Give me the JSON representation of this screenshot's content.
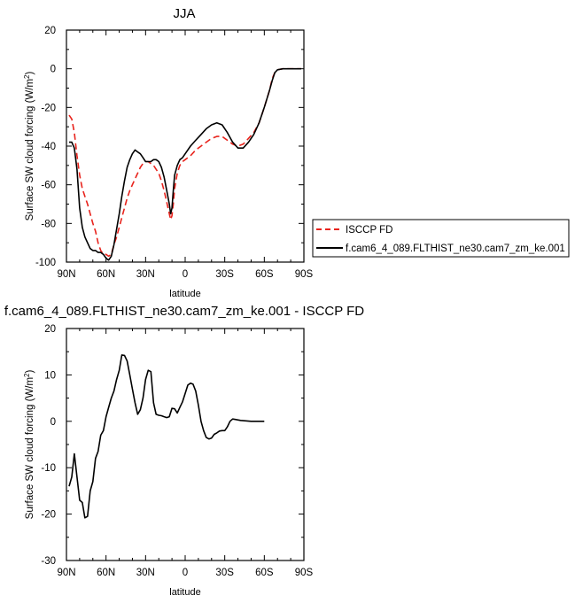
{
  "chart_data": [
    {
      "type": "line",
      "title": "JJA",
      "xlabel": "latitude",
      "ylabel": "Surface SW cloud forcing (W/m²)",
      "xlim": [
        90,
        -90
      ],
      "ylim": [
        -100,
        20
      ],
      "xticks": [
        90,
        60,
        30,
        0,
        -30,
        -60,
        -90
      ],
      "xtick_labels": [
        "90N",
        "60N",
        "30N",
        "0",
        "30S",
        "60S",
        "90S"
      ],
      "yticks": [
        -100,
        -80,
        -60,
        -40,
        -20,
        0,
        20
      ],
      "ytick_labels": [
        "-100",
        "-80",
        "-60",
        "-40",
        "-20",
        "0",
        "20"
      ],
      "legend_position": "right",
      "series": [
        {
          "name": "ISCCP FD",
          "color": "#e8231c",
          "dash": "dashed",
          "points": [
            [
              88,
              -24
            ],
            [
              86,
              -26
            ],
            [
              84,
              -33
            ],
            [
              82,
              -45
            ],
            [
              80,
              -55
            ],
            [
              78,
              -62
            ],
            [
              76,
              -66
            ],
            [
              74,
              -70
            ],
            [
              72,
              -75
            ],
            [
              70,
              -80
            ],
            [
              68,
              -84
            ],
            [
              66,
              -90
            ],
            [
              64,
              -94
            ],
            [
              62,
              -96
            ],
            [
              60,
              -96
            ],
            [
              58,
              -97
            ],
            [
              56,
              -96
            ],
            [
              54,
              -91
            ],
            [
              52,
              -87
            ],
            [
              50,
              -82
            ],
            [
              48,
              -77
            ],
            [
              46,
              -72
            ],
            [
              44,
              -67
            ],
            [
              42,
              -63
            ],
            [
              40,
              -60
            ],
            [
              38,
              -57
            ],
            [
              36,
              -54
            ],
            [
              34,
              -51
            ],
            [
              32,
              -49
            ],
            [
              30,
              -48
            ],
            [
              28,
              -48
            ],
            [
              26,
              -49
            ],
            [
              24,
              -50
            ],
            [
              22,
              -52
            ],
            [
              20,
              -54
            ],
            [
              18,
              -58
            ],
            [
              16,
              -63
            ],
            [
              14,
              -69
            ],
            [
              12,
              -75
            ],
            [
              11,
              -78
            ],
            [
              10,
              -76
            ],
            [
              9,
              -70
            ],
            [
              8,
              -62
            ],
            [
              6,
              -54
            ],
            [
              4,
              -50
            ],
            [
              2,
              -48
            ],
            [
              0,
              -47
            ],
            [
              -4,
              -45
            ],
            [
              -8,
              -42
            ],
            [
              -12,
              -40
            ],
            [
              -16,
              -38
            ],
            [
              -20,
              -36
            ],
            [
              -24,
              -35
            ],
            [
              -28,
              -35
            ],
            [
              -32,
              -37
            ],
            [
              -36,
              -39
            ],
            [
              -40,
              -40
            ],
            [
              -44,
              -39
            ],
            [
              -48,
              -36
            ],
            [
              -52,
              -33
            ],
            [
              -56,
              -28
            ],
            [
              -60,
              -20
            ],
            [
              -64,
              -11
            ],
            [
              -66,
              -5
            ],
            [
              -68,
              -2
            ],
            [
              -70,
              -0.5
            ],
            [
              -74,
              0
            ],
            [
              -80,
              0
            ],
            [
              -88,
              0
            ]
          ]
        },
        {
          "name": "f.cam6_4_089.FLTHIST_ne30.cam7_zm_ke.001",
          "color": "#000000",
          "dash": "solid",
          "points": [
            [
              88,
              -38
            ],
            [
              86,
              -38
            ],
            [
              84,
              -41
            ],
            [
              82,
              -52
            ],
            [
              80,
              -72
            ],
            [
              78,
              -82
            ],
            [
              76,
              -87
            ],
            [
              74,
              -90
            ],
            [
              72,
              -93
            ],
            [
              70,
              -94
            ],
            [
              68,
              -94
            ],
            [
              66,
              -95
            ],
            [
              64,
              -95
            ],
            [
              62,
              -96
            ],
            [
              60,
              -98
            ],
            [
              58,
              -99
            ],
            [
              56,
              -97
            ],
            [
              54,
              -91
            ],
            [
              52,
              -83
            ],
            [
              50,
              -75
            ],
            [
              48,
              -66
            ],
            [
              46,
              -58
            ],
            [
              44,
              -51
            ],
            [
              42,
              -47
            ],
            [
              40,
              -44
            ],
            [
              38,
              -42
            ],
            [
              36,
              -43
            ],
            [
              34,
              -44
            ],
            [
              32,
              -46
            ],
            [
              30,
              -48
            ],
            [
              28,
              -48
            ],
            [
              26,
              -48
            ],
            [
              24,
              -47
            ],
            [
              22,
              -47
            ],
            [
              20,
              -48
            ],
            [
              18,
              -51
            ],
            [
              16,
              -56
            ],
            [
              14,
              -63
            ],
            [
              12,
              -70
            ],
            [
              11,
              -75
            ],
            [
              10,
              -72
            ],
            [
              9,
              -63
            ],
            [
              8,
              -55
            ],
            [
              6,
              -50
            ],
            [
              4,
              -47
            ],
            [
              2,
              -46
            ],
            [
              0,
              -44
            ],
            [
              -4,
              -40
            ],
            [
              -8,
              -37
            ],
            [
              -12,
              -34
            ],
            [
              -16,
              -31
            ],
            [
              -20,
              -29
            ],
            [
              -24,
              -28
            ],
            [
              -28,
              -29
            ],
            [
              -32,
              -33
            ],
            [
              -36,
              -38
            ],
            [
              -40,
              -41
            ],
            [
              -44,
              -41
            ],
            [
              -48,
              -38
            ],
            [
              -52,
              -34
            ],
            [
              -56,
              -28
            ],
            [
              -60,
              -20
            ],
            [
              -64,
              -11
            ],
            [
              -66,
              -6
            ],
            [
              -68,
              -2
            ],
            [
              -70,
              -0.5
            ],
            [
              -74,
              0
            ],
            [
              -80,
              0
            ],
            [
              -88,
              0
            ]
          ]
        }
      ]
    },
    {
      "type": "line",
      "title": "f.cam6_4_089.FLTHIST_ne30.cam7_zm_ke.001 - ISCCP FD",
      "xlabel": "latitude",
      "ylabel": "Surface SW cloud forcing (W/m²)",
      "xlim": [
        90,
        -90
      ],
      "ylim": [
        -30,
        20
      ],
      "xticks": [
        90,
        60,
        30,
        0,
        -30,
        -60,
        -90
      ],
      "xtick_labels": [
        "90N",
        "60N",
        "30N",
        "0",
        "30S",
        "60S",
        "90S"
      ],
      "yticks": [
        -30,
        -20,
        -10,
        0,
        10,
        20
      ],
      "ytick_labels": [
        "-30",
        "-20",
        "-10",
        "0",
        "10",
        "20"
      ],
      "series": [
        {
          "color": "#000000",
          "dash": "solid",
          "points": [
            [
              88,
              -14
            ],
            [
              86,
              -12
            ],
            [
              84,
              -7
            ],
            [
              82,
              -12
            ],
            [
              80,
              -17
            ],
            [
              78,
              -17.5
            ],
            [
              76,
              -20.8
            ],
            [
              74,
              -20.5
            ],
            [
              72,
              -15
            ],
            [
              70,
              -13
            ],
            [
              68,
              -8
            ],
            [
              66,
              -6.5
            ],
            [
              64,
              -3
            ],
            [
              62,
              -2
            ],
            [
              60,
              1
            ],
            [
              58,
              3
            ],
            [
              56,
              5
            ],
            [
              54,
              6.5
            ],
            [
              52,
              9
            ],
            [
              50,
              11
            ],
            [
              48,
              14.3
            ],
            [
              46,
              14.2
            ],
            [
              44,
              13
            ],
            [
              42,
              10
            ],
            [
              40,
              7
            ],
            [
              38,
              4
            ],
            [
              36,
              1.5
            ],
            [
              34,
              2.5
            ],
            [
              32,
              5
            ],
            [
              30,
              9
            ],
            [
              28,
              11
            ],
            [
              26,
              10.7
            ],
            [
              24,
              4
            ],
            [
              22,
              1.5
            ],
            [
              20,
              1.3
            ],
            [
              18,
              1.2
            ],
            [
              16,
              1
            ],
            [
              14,
              0.8
            ],
            [
              12,
              1
            ],
            [
              10,
              2.8
            ],
            [
              8,
              2.7
            ],
            [
              6,
              1.8
            ],
            [
              4,
              3
            ],
            [
              2,
              4.2
            ],
            [
              0,
              6
            ],
            [
              -2,
              7.8
            ],
            [
              -4,
              8.2
            ],
            [
              -6,
              8
            ],
            [
              -8,
              6.5
            ],
            [
              -10,
              3.5
            ],
            [
              -12,
              0
            ],
            [
              -14,
              -2
            ],
            [
              -16,
              -3.5
            ],
            [
              -18,
              -3.8
            ],
            [
              -20,
              -3.6
            ],
            [
              -22,
              -2.8
            ],
            [
              -24,
              -2.5
            ],
            [
              -26,
              -2.1
            ],
            [
              -28,
              -2
            ],
            [
              -30,
              -2
            ],
            [
              -32,
              -1.2
            ],
            [
              -34,
              0
            ],
            [
              -36,
              0.5
            ],
            [
              -38,
              0.4
            ],
            [
              -42,
              0.2
            ],
            [
              -46,
              0.1
            ],
            [
              -50,
              0
            ],
            [
              -60,
              0
            ]
          ]
        }
      ]
    }
  ]
}
